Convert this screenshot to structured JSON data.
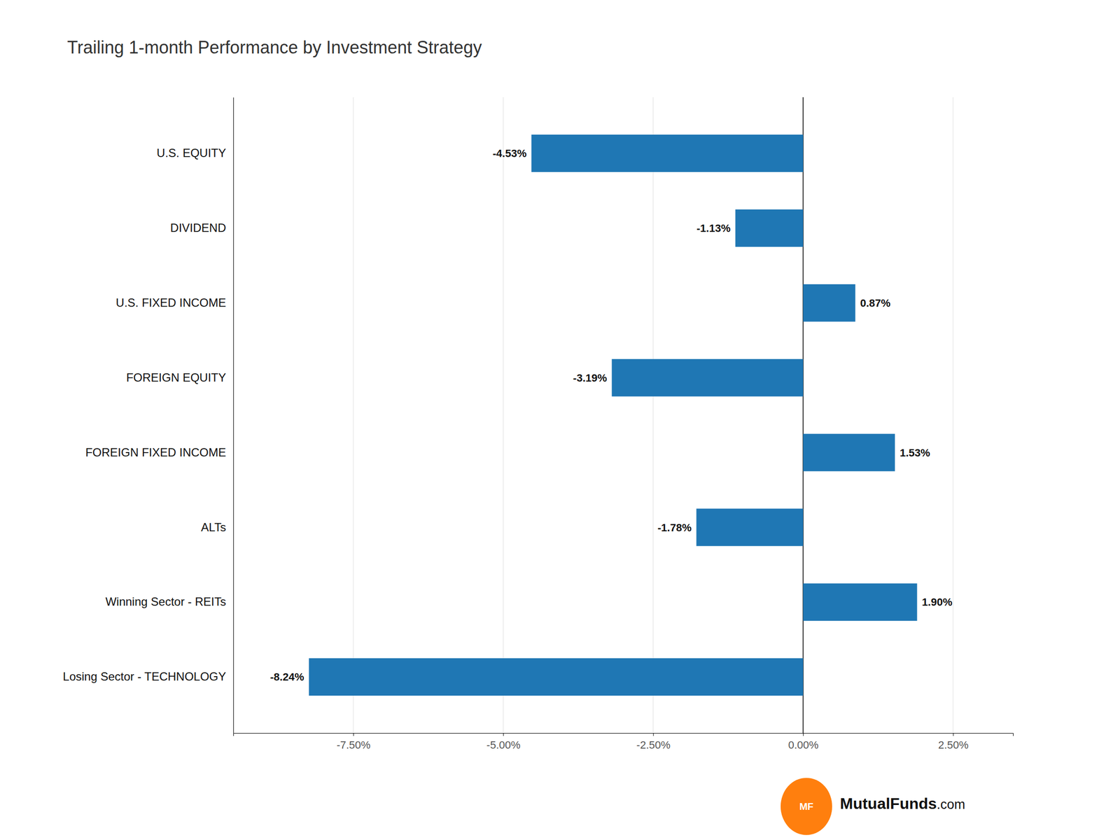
{
  "chart_data": {
    "type": "bar",
    "orientation": "horizontal",
    "title": "Trailing 1-month Performance by Investment Strategy",
    "categories": [
      "U.S. EQUITY",
      "DIVIDEND",
      "U.S. FIXED INCOME",
      "FOREIGN EQUITY",
      "FOREIGN FIXED INCOME",
      "ALTs",
      "Winning Sector - REITs",
      "Losing Sector - TECHNOLOGY"
    ],
    "values": [
      -4.53,
      -1.13,
      0.87,
      -3.19,
      1.53,
      -1.78,
      1.9,
      -8.24
    ],
    "value_labels": [
      "-4.53%",
      "-1.13%",
      "0.87%",
      "-3.19%",
      "1.53%",
      "-1.78%",
      "1.90%",
      "-8.24%"
    ],
    "data_labels": true,
    "xlim": [
      -9.5,
      3.5
    ],
    "xticks": [
      {
        "value": -7.5,
        "label": "-7.50%"
      },
      {
        "value": -5.0,
        "label": "-5.00%"
      },
      {
        "value": -2.5,
        "label": "-2.50%"
      },
      {
        "value": 0.0,
        "label": "0.00%"
      },
      {
        "value": 2.5,
        "label": "2.50%"
      }
    ],
    "grid": true,
    "annotations": [
      "MF",
      "MutualFunds",
      ".com"
    ]
  }
}
